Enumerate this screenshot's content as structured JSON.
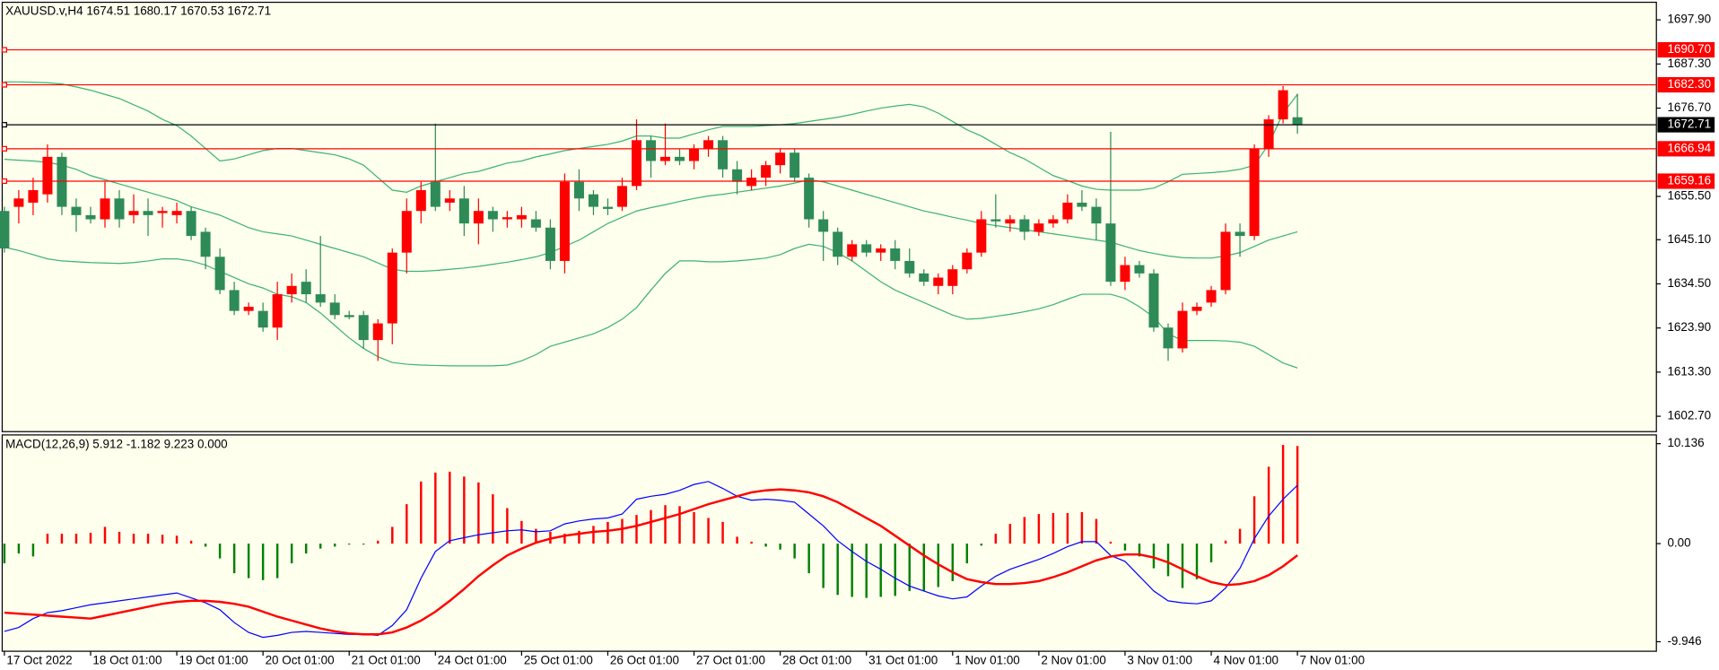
{
  "chart_data": [
    {
      "type": "candlestick",
      "title": "XAUUSD.v,H4",
      "categories": [
        "17 Oct 2022",
        null,
        null,
        null,
        null,
        null,
        "18 Oct 01:00",
        null,
        null,
        null,
        null,
        null,
        "19 Oct 01:00",
        null,
        null,
        null,
        null,
        null,
        "20 Oct 01:00",
        null,
        null,
        null,
        null,
        null,
        "21 Oct 01:00",
        null,
        null,
        null,
        null,
        null,
        "24 Oct 01:00",
        null,
        null,
        null,
        null,
        null,
        "25 Oct 01:00",
        null,
        null,
        null,
        null,
        null,
        "26 Oct 01:00",
        null,
        null,
        null,
        null,
        null,
        "27 Oct 01:00",
        null,
        null,
        null,
        null,
        null,
        "28 Oct 01:00",
        null,
        null,
        null,
        null,
        null,
        "31 Oct 01:00",
        null,
        null,
        null,
        null,
        null,
        "1 Nov 01:00",
        null,
        null,
        null,
        null,
        null,
        "2 Nov 01:00",
        null,
        null,
        null,
        null,
        null,
        "3 Nov 01:00",
        null,
        null,
        null,
        null,
        null,
        "4 Nov 01:00",
        null,
        null,
        null,
        null,
        null,
        "7 Nov 01:00"
      ],
      "open": [
        1652,
        1653,
        1654,
        1656,
        1665,
        1653,
        1651,
        1650,
        1655,
        1651,
        1652,
        1651.5,
        1651,
        1652,
        1647,
        1641,
        1633,
        1628,
        1628,
        1624,
        1632,
        1635,
        1632,
        1630,
        1627,
        1627,
        1621,
        1625,
        1642,
        1652,
        1659,
        1654,
        1655,
        1649,
        1652,
        1650,
        1650,
        1650,
        1648,
        1640,
        1659,
        1656,
        1653,
        1653,
        1658,
        1669,
        1664,
        1665,
        1664,
        1667,
        1669,
        1662,
        1658,
        1660,
        1663,
        1666,
        1660,
        1650,
        1647,
        1641,
        1644,
        1642,
        1643,
        1640,
        1637,
        1634,
        1634,
        1638,
        1642,
        1650,
        1649,
        1650,
        1647,
        1649,
        1650,
        1654,
        1653,
        1649,
        1635,
        1639,
        1637,
        1624,
        1619,
        1628,
        1630,
        1633,
        1647,
        1646,
        1667,
        1674,
        1674.51
      ],
      "high": [
        1653,
        1657,
        1660,
        1668,
        1666,
        1655,
        1653,
        1659,
        1657,
        1656,
        1655,
        1653,
        1654,
        1653,
        1648,
        1643,
        1635,
        1630,
        1630,
        1635,
        1637,
        1638,
        1646,
        1632,
        1628,
        1628,
        1626,
        1643,
        1655,
        1659,
        1673,
        1657,
        1658,
        1655,
        1653,
        1652,
        1653,
        1652,
        1650,
        1661,
        1662,
        1657,
        1655,
        1660,
        1674,
        1670,
        1673,
        1667,
        1668,
        1670,
        1670,
        1664,
        1662,
        1664,
        1667,
        1667,
        1661,
        1652,
        1648,
        1645,
        1645,
        1644,
        1645,
        1643,
        1638,
        1637,
        1639,
        1643,
        1652,
        1656,
        1651,
        1651,
        1650,
        1651,
        1656,
        1657,
        1655,
        1671,
        1641,
        1640,
        1638,
        1625,
        1630,
        1630,
        1634,
        1649,
        1649,
        1668,
        1675,
        1682,
        1680.17
      ],
      "low": [
        1642,
        1649,
        1651,
        1654,
        1651,
        1647,
        1649,
        1648,
        1648,
        1649,
        1646,
        1648,
        1649,
        1645,
        1638,
        1632,
        1627,
        1627,
        1623,
        1621,
        1630,
        1630,
        1629,
        1626,
        1626,
        1619,
        1616,
        1620,
        1637,
        1649,
        1652,
        1652,
        1646,
        1644,
        1647,
        1648,
        1648,
        1647,
        1638,
        1637,
        1652,
        1651,
        1651,
        1652,
        1657,
        1660,
        1663,
        1663,
        1662,
        1665,
        1660,
        1656,
        1657,
        1658,
        1661,
        1659,
        1648,
        1640,
        1639,
        1640,
        1641,
        1640,
        1638,
        1636,
        1634,
        1632,
        1632,
        1637,
        1641,
        1648,
        1647,
        1645,
        1646,
        1648,
        1649,
        1652,
        1645,
        1634,
        1633,
        1636,
        1623,
        1616,
        1618,
        1627,
        1629,
        1632,
        1641,
        1645,
        1665,
        1673,
        1670.53
      ],
      "close": [
        1643,
        1655,
        1657,
        1665,
        1653,
        1651,
        1650,
        1655,
        1650,
        1652,
        1651,
        1652,
        1652,
        1646,
        1641,
        1633,
        1628,
        1629,
        1624,
        1632,
        1634,
        1632,
        1630,
        1627,
        1626.5,
        1621,
        1625,
        1642,
        1652,
        1657,
        1653,
        1655,
        1649,
        1652,
        1650,
        1650.5,
        1651,
        1648,
        1640,
        1659,
        1655,
        1653,
        1652.5,
        1658,
        1669,
        1664,
        1665,
        1664,
        1667,
        1669,
        1662,
        1659,
        1660,
        1663,
        1666,
        1660,
        1650,
        1647,
        1641,
        1644,
        1642,
        1643,
        1640,
        1637,
        1635,
        1636,
        1638,
        1642,
        1650,
        1649.5,
        1650,
        1647,
        1649,
        1650,
        1654,
        1653,
        1649,
        1635,
        1639,
        1637,
        1624,
        1619,
        1628,
        1629,
        1633,
        1647,
        1646,
        1667,
        1674,
        1681,
        1672.71
      ],
      "up_color": "#ff0000",
      "down_color": "#2e8b57",
      "series": [
        {
          "color": "#3cb371",
          "values": [
            1683,
            1683,
            1682.9,
            1682.8,
            1682.5,
            1681.8,
            1681,
            1680,
            1679,
            1677.5,
            1676,
            1674,
            1672.5,
            1670,
            1667,
            1664,
            1664.5,
            1665.5,
            1666.5,
            1667,
            1667,
            1666.5,
            1666,
            1665.5,
            1664.5,
            1663,
            1660,
            1657,
            1656.5,
            1658,
            1659,
            1660,
            1661,
            1661.5,
            1662.5,
            1663.5,
            1664,
            1665,
            1665.7,
            1666.5,
            1667,
            1667.5,
            1668,
            1668.8,
            1670,
            1670,
            1669.5,
            1669.5,
            1670.5,
            1671.5,
            1672.3,
            1672.3,
            1672.3,
            1672.5,
            1672.7,
            1673,
            1673.5,
            1674,
            1674.5,
            1675.2,
            1676,
            1676.7,
            1677.2,
            1677.6,
            1677,
            1675.5,
            1673.5,
            1671.5,
            1670,
            1668,
            1666,
            1664.5,
            1662.5,
            1660.5,
            1659.3,
            1658,
            1657.2,
            1657,
            1657,
            1657,
            1657.5,
            1659,
            1660.8,
            1661,
            1661.2,
            1661.5,
            1662,
            1663,
            1668,
            1675.5,
            1680
          ]
        },
        {
          "color": "#3cb371",
          "values": [
            1664.4,
            1664.2,
            1664,
            1663.7,
            1663,
            1662,
            1660.5,
            1659.5,
            1658.5,
            1657.5,
            1656.5,
            1655.5,
            1654.5,
            1653,
            1652,
            1651,
            1649.5,
            1648,
            1647,
            1646.5,
            1646,
            1645,
            1644,
            1643,
            1642,
            1641,
            1639.5,
            1638,
            1637.5,
            1637.5,
            1637.7,
            1638,
            1638.3,
            1638.7,
            1639.2,
            1639.7,
            1640.3,
            1641,
            1642,
            1643.5,
            1645,
            1647,
            1649,
            1650.5,
            1652,
            1652.8,
            1653.5,
            1654.3,
            1655,
            1655.6,
            1656,
            1656.5,
            1657,
            1657.5,
            1658,
            1658.7,
            1659.5,
            1659,
            1658,
            1657,
            1656,
            1655,
            1654,
            1653,
            1652,
            1651.3,
            1650.5,
            1649.8,
            1649,
            1648.5,
            1648,
            1647.5,
            1647,
            1646.5,
            1646,
            1645.5,
            1645,
            1644.5,
            1643.5,
            1642.5,
            1641.8,
            1641.2,
            1640.8,
            1640.7,
            1640.7,
            1641.2,
            1642,
            1643.5,
            1645,
            1646,
            1647
          ]
        },
        {
          "color": "#3cb371",
          "values": [
            1643.3,
            1642.5,
            1641.5,
            1640.5,
            1640,
            1639.8,
            1639.6,
            1639.5,
            1639.4,
            1639.6,
            1640,
            1640.5,
            1640.5,
            1640,
            1639,
            1637.5,
            1636,
            1634.5,
            1633.5,
            1632,
            1631.4,
            1630,
            1627.5,
            1624.5,
            1621.5,
            1619,
            1617,
            1615.6,
            1615.2,
            1615,
            1614.9,
            1614.8,
            1614.8,
            1614.8,
            1614.8,
            1615,
            1616,
            1617.5,
            1619.5,
            1620.5,
            1621.5,
            1622.5,
            1624,
            1626,
            1628.8,
            1633,
            1637,
            1640,
            1640,
            1639.8,
            1639.8,
            1640,
            1640.3,
            1640.7,
            1641.5,
            1643,
            1644,
            1643.5,
            1642,
            1640,
            1637.5,
            1635,
            1633,
            1631.5,
            1630,
            1628.5,
            1627,
            1626,
            1626.2,
            1626.7,
            1627.2,
            1627.8,
            1628.5,
            1629.5,
            1630.8,
            1632,
            1632,
            1632,
            1631,
            1629,
            1626.5,
            1622.5,
            1620.9,
            1620.9,
            1620.9,
            1620.8,
            1620.5,
            1619.5,
            1617.5,
            1615.5,
            1614.3
          ]
        }
      ],
      "levels": [
        {
          "value": 1690.7,
          "label": "1690.70",
          "color": "#ff0000"
        },
        {
          "value": 1682.3,
          "label": "1682.30",
          "color": "#ff0000"
        },
        {
          "value": 1666.94,
          "label": "1666.94",
          "color": "#ff0000"
        },
        {
          "value": 1659.16,
          "label": "1659.16",
          "color": "#ff0000"
        },
        {
          "value": 1672.71,
          "label": "1672.71",
          "color": "#000000"
        }
      ],
      "ylim": [
        1599.27,
        1702.12
      ],
      "yticks": [
        {
          "value": 1602.7,
          "label": "1602.70"
        },
        {
          "value": 1613.3,
          "label": "1613.30"
        },
        {
          "value": 1623.9,
          "label": "1623.90"
        },
        {
          "value": 1634.5,
          "label": "1634.50"
        },
        {
          "value": 1645.1,
          "label": "1645.10"
        },
        {
          "value": 1655.5,
          "label": "1655.50"
        },
        {
          "value": 1676.7,
          "label": "1676.70"
        },
        {
          "value": 1687.3,
          "label": "1687.30"
        },
        {
          "value": 1697.9,
          "label": "1697.90"
        }
      ]
    },
    {
      "type": "macd",
      "title": "MACD(12,26,9) 5.912 -1.182 9.223 0.000",
      "histogram": {
        "up_color": "#ff0000",
        "down_color": "#008000",
        "values": [
          -2.0,
          -1.0,
          -1.3,
          1.0,
          1.0,
          1.0,
          1.1,
          1.7,
          1.2,
          1.0,
          1.0,
          0.9,
          0.8,
          0.3,
          -0.3,
          -1.5,
          -3.0,
          -3.5,
          -3.7,
          -3.5,
          -2.0,
          -1.0,
          -0.5,
          -0.3,
          -0.1,
          -0.1,
          0.3,
          1.7,
          4.0,
          6.3,
          7.2,
          7.3,
          6.8,
          6.2,
          5.0,
          3.6,
          2.3,
          1.5,
          1.2,
          1.0,
          1.3,
          1.8,
          2.2,
          2.5,
          2.9,
          3.4,
          3.9,
          3.8,
          3.2,
          2.6,
          2.2,
          0.7,
          0.2,
          -0.3,
          -0.6,
          -1.5,
          -3.0,
          -4.5,
          -5.2,
          -5.4,
          -5.5,
          -5.4,
          -5.3,
          -4.8,
          -4.8,
          -4.4,
          -3.8,
          -2.0,
          -0.2,
          1.0,
          2.0,
          2.7,
          3.0,
          3.1,
          3.1,
          3.2,
          2.5,
          0.2,
          -0.7,
          -1.3,
          -2.5,
          -3.3,
          -4.5,
          -3.6,
          -1.9,
          0.3,
          1.5,
          4.8,
          7.8,
          10.0,
          9.9
        ]
      },
      "series": [
        {
          "color": "#0000ff",
          "width": 1,
          "values": [
            -8.9,
            -8.5,
            -7.6,
            -7.0,
            -6.8,
            -6.5,
            -6.2,
            -6.0,
            -5.8,
            -5.6,
            -5.4,
            -5.2,
            -5.0,
            -5.5,
            -6.0,
            -6.7,
            -8.0,
            -9.0,
            -9.5,
            -9.3,
            -9.0,
            -8.9,
            -9.0,
            -9.1,
            -9.2,
            -9.2,
            -9.3,
            -8.3,
            -6.7,
            -3.5,
            -0.8,
            0.3,
            0.6,
            0.9,
            1.1,
            1.3,
            1.4,
            1.2,
            1.3,
            2.0,
            2.3,
            2.5,
            2.6,
            3.0,
            4.5,
            4.8,
            5.0,
            5.4,
            6.0,
            6.3,
            5.6,
            4.8,
            4.4,
            4.5,
            4.4,
            4.2,
            3.0,
            1.8,
            0.3,
            -0.8,
            -1.8,
            -2.6,
            -3.5,
            -4.3,
            -4.8,
            -5.3,
            -5.6,
            -5.4,
            -4.3,
            -3.3,
            -2.6,
            -2.1,
            -1.6,
            -1.0,
            -0.3,
            0.2,
            0.2,
            -1.2,
            -1.8,
            -3.3,
            -4.8,
            -5.8,
            -6.0,
            -6.1,
            -5.8,
            -4.5,
            -2.5,
            0.5,
            2.8,
            4.5,
            5.912
          ]
        },
        {
          "color": "#ff0000",
          "width": 2,
          "values": [
            -7.0,
            -7.1,
            -7.2,
            -7.3,
            -7.4,
            -7.5,
            -7.6,
            -7.3,
            -7.0,
            -6.7,
            -6.4,
            -6.1,
            -5.9,
            -5.8,
            -5.8,
            -5.9,
            -6.1,
            -6.4,
            -6.9,
            -7.4,
            -7.8,
            -8.2,
            -8.6,
            -8.9,
            -9.1,
            -9.2,
            -9.2,
            -9.0,
            -8.5,
            -7.8,
            -6.9,
            -5.8,
            -4.6,
            -3.3,
            -2.2,
            -1.2,
            -0.5,
            0.1,
            0.5,
            0.8,
            1.0,
            1.2,
            1.3,
            1.5,
            1.8,
            2.2,
            2.6,
            3.0,
            3.5,
            4.0,
            4.4,
            4.8,
            5.2,
            5.4,
            5.5,
            5.4,
            5.2,
            4.8,
            4.2,
            3.4,
            2.6,
            1.8,
            0.8,
            -0.2,
            -1.2,
            -2.1,
            -2.9,
            -3.6,
            -3.9,
            -4.1,
            -4.1,
            -4.0,
            -3.8,
            -3.4,
            -2.9,
            -2.3,
            -1.7,
            -1.3,
            -1.1,
            -1.1,
            -1.4,
            -1.9,
            -2.6,
            -3.3,
            -3.9,
            -4.2,
            -4.1,
            -3.8,
            -3.2,
            -2.3,
            -1.182
          ]
        }
      ],
      "ylim": [
        -10.8,
        10.91
      ],
      "yticks": [
        -9.946,
        {
          "value": 0,
          "label": "0.00"
        },
        10.136
      ]
    }
  ]
}
